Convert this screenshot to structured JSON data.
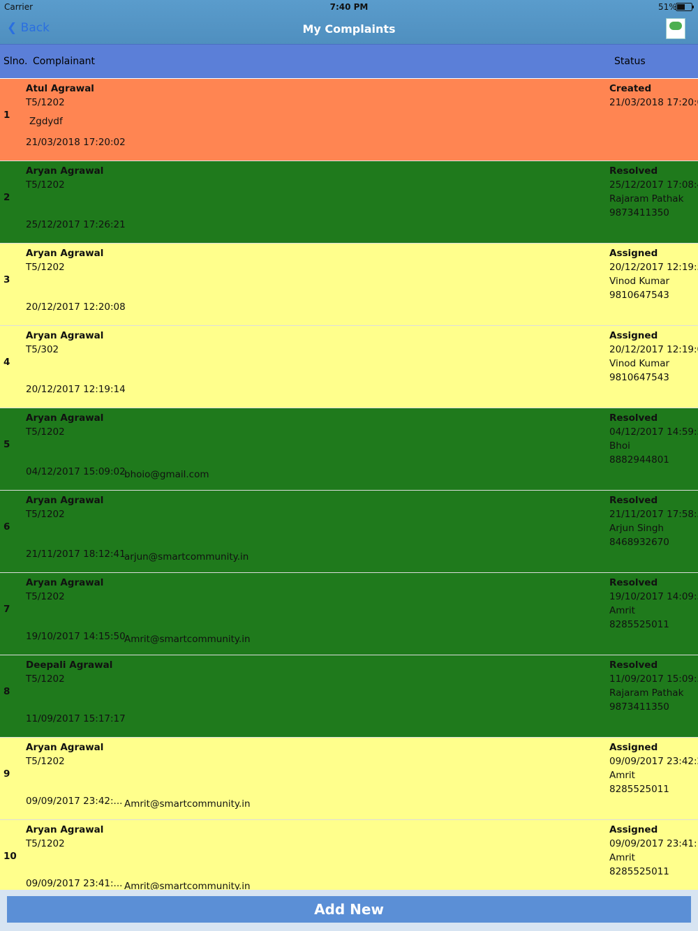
{
  "status_bar": {
    "carrier": "Carrier",
    "time": "7:40 PM",
    "battery": "51%"
  },
  "nav": {
    "back": "Back",
    "title": "My Complaints"
  },
  "header": {
    "slno": "Slno.",
    "complainant": "Complainant",
    "status": "Status"
  },
  "rows": [
    {
      "slno": 1,
      "name": "Atul Agrawal",
      "flat": "T5/1202",
      "description": "Zgdydf",
      "date": "21/03/2018 17:20:02",
      "status": "Created",
      "status_date": "21/03/2018 17:20:0",
      "color": "#ff8552"
    },
    {
      "slno": 2,
      "name": "Aryan Agrawal",
      "flat": "T5/1202",
      "date": "25/12/2017 17:26:21",
      "status": "Resolved",
      "status_date": "25/12/2017 17:08:4",
      "assignee": "Rajaram Pathak",
      "phone": "9873411350",
      "color": "#1f7a1c"
    },
    {
      "slno": 3,
      "name": "Aryan Agrawal",
      "flat": "T5/1202",
      "date": "20/12/2017 12:20:08",
      "status": "Assigned",
      "status_date": "20/12/2017 12:19:5",
      "assignee": "Vinod Kumar",
      "phone": "9810647543",
      "color": "#ffff8c"
    },
    {
      "slno": 4,
      "name": "Aryan Agrawal",
      "flat": "T5/302",
      "date": "20/12/2017 12:19:14",
      "status": "Assigned",
      "status_date": "20/12/2017 12:19:0",
      "assignee": "Vinod Kumar",
      "phone": "9810647543",
      "color": "#ffff8c"
    },
    {
      "slno": 5,
      "name": "Aryan Agrawal",
      "flat": "T5/1202",
      "date": "04/12/2017 15:09:02",
      "email": "bhoio@gmail.com",
      "status": "Resolved",
      "status_date": "04/12/2017 14:59:3",
      "assignee": "Bhoi",
      "phone": "8882944801",
      "color": "#1f7a1c"
    },
    {
      "slno": 6,
      "name": "Aryan Agrawal",
      "flat": "T5/1202",
      "date": "21/11/2017 18:12:41",
      "email": "arjun@smartcommunity.in",
      "status": "Resolved",
      "status_date": "21/11/2017 17:58:5",
      "assignee": "Arjun Singh",
      "phone": "8468932670",
      "color": "#1f7a1c"
    },
    {
      "slno": 7,
      "name": "Aryan Agrawal",
      "flat": "T5/1202",
      "date": "19/10/2017 14:15:50",
      "email": "Amrit@smartcommunity.in",
      "status": "Resolved",
      "status_date": "19/10/2017 14:09:5",
      "assignee": "Amrit",
      "phone": "8285525011",
      "color": "#1f7a1c"
    },
    {
      "slno": 8,
      "name": "Deepali Agrawal",
      "flat": "T5/1202",
      "date": "11/09/2017 15:17:17",
      "status": "Resolved",
      "status_date": "11/09/2017 15:09:5",
      "assignee": "Rajaram Pathak",
      "phone": "9873411350",
      "color": "#1f7a1c"
    },
    {
      "slno": 9,
      "name": "Aryan Agrawal",
      "flat": "T5/1202",
      "date": "09/09/2017 23:42:...",
      "email": "Amrit@smartcommunity.in",
      "status": "Assigned",
      "status_date": "09/09/2017 23:42:2",
      "assignee": "Amrit",
      "phone": "8285525011",
      "color": "#ffff8c"
    },
    {
      "slno": 10,
      "name": "Aryan Agrawal",
      "flat": "T5/1202",
      "date": "09/09/2017 23:41:...",
      "email": "Amrit@smartcommunity.in",
      "status": "Assigned",
      "status_date": "09/09/2017 23:41:1",
      "assignee": "Amrit",
      "phone": "8285525011",
      "color": "#ffff8c"
    }
  ],
  "footer": {
    "button": "Add New"
  }
}
